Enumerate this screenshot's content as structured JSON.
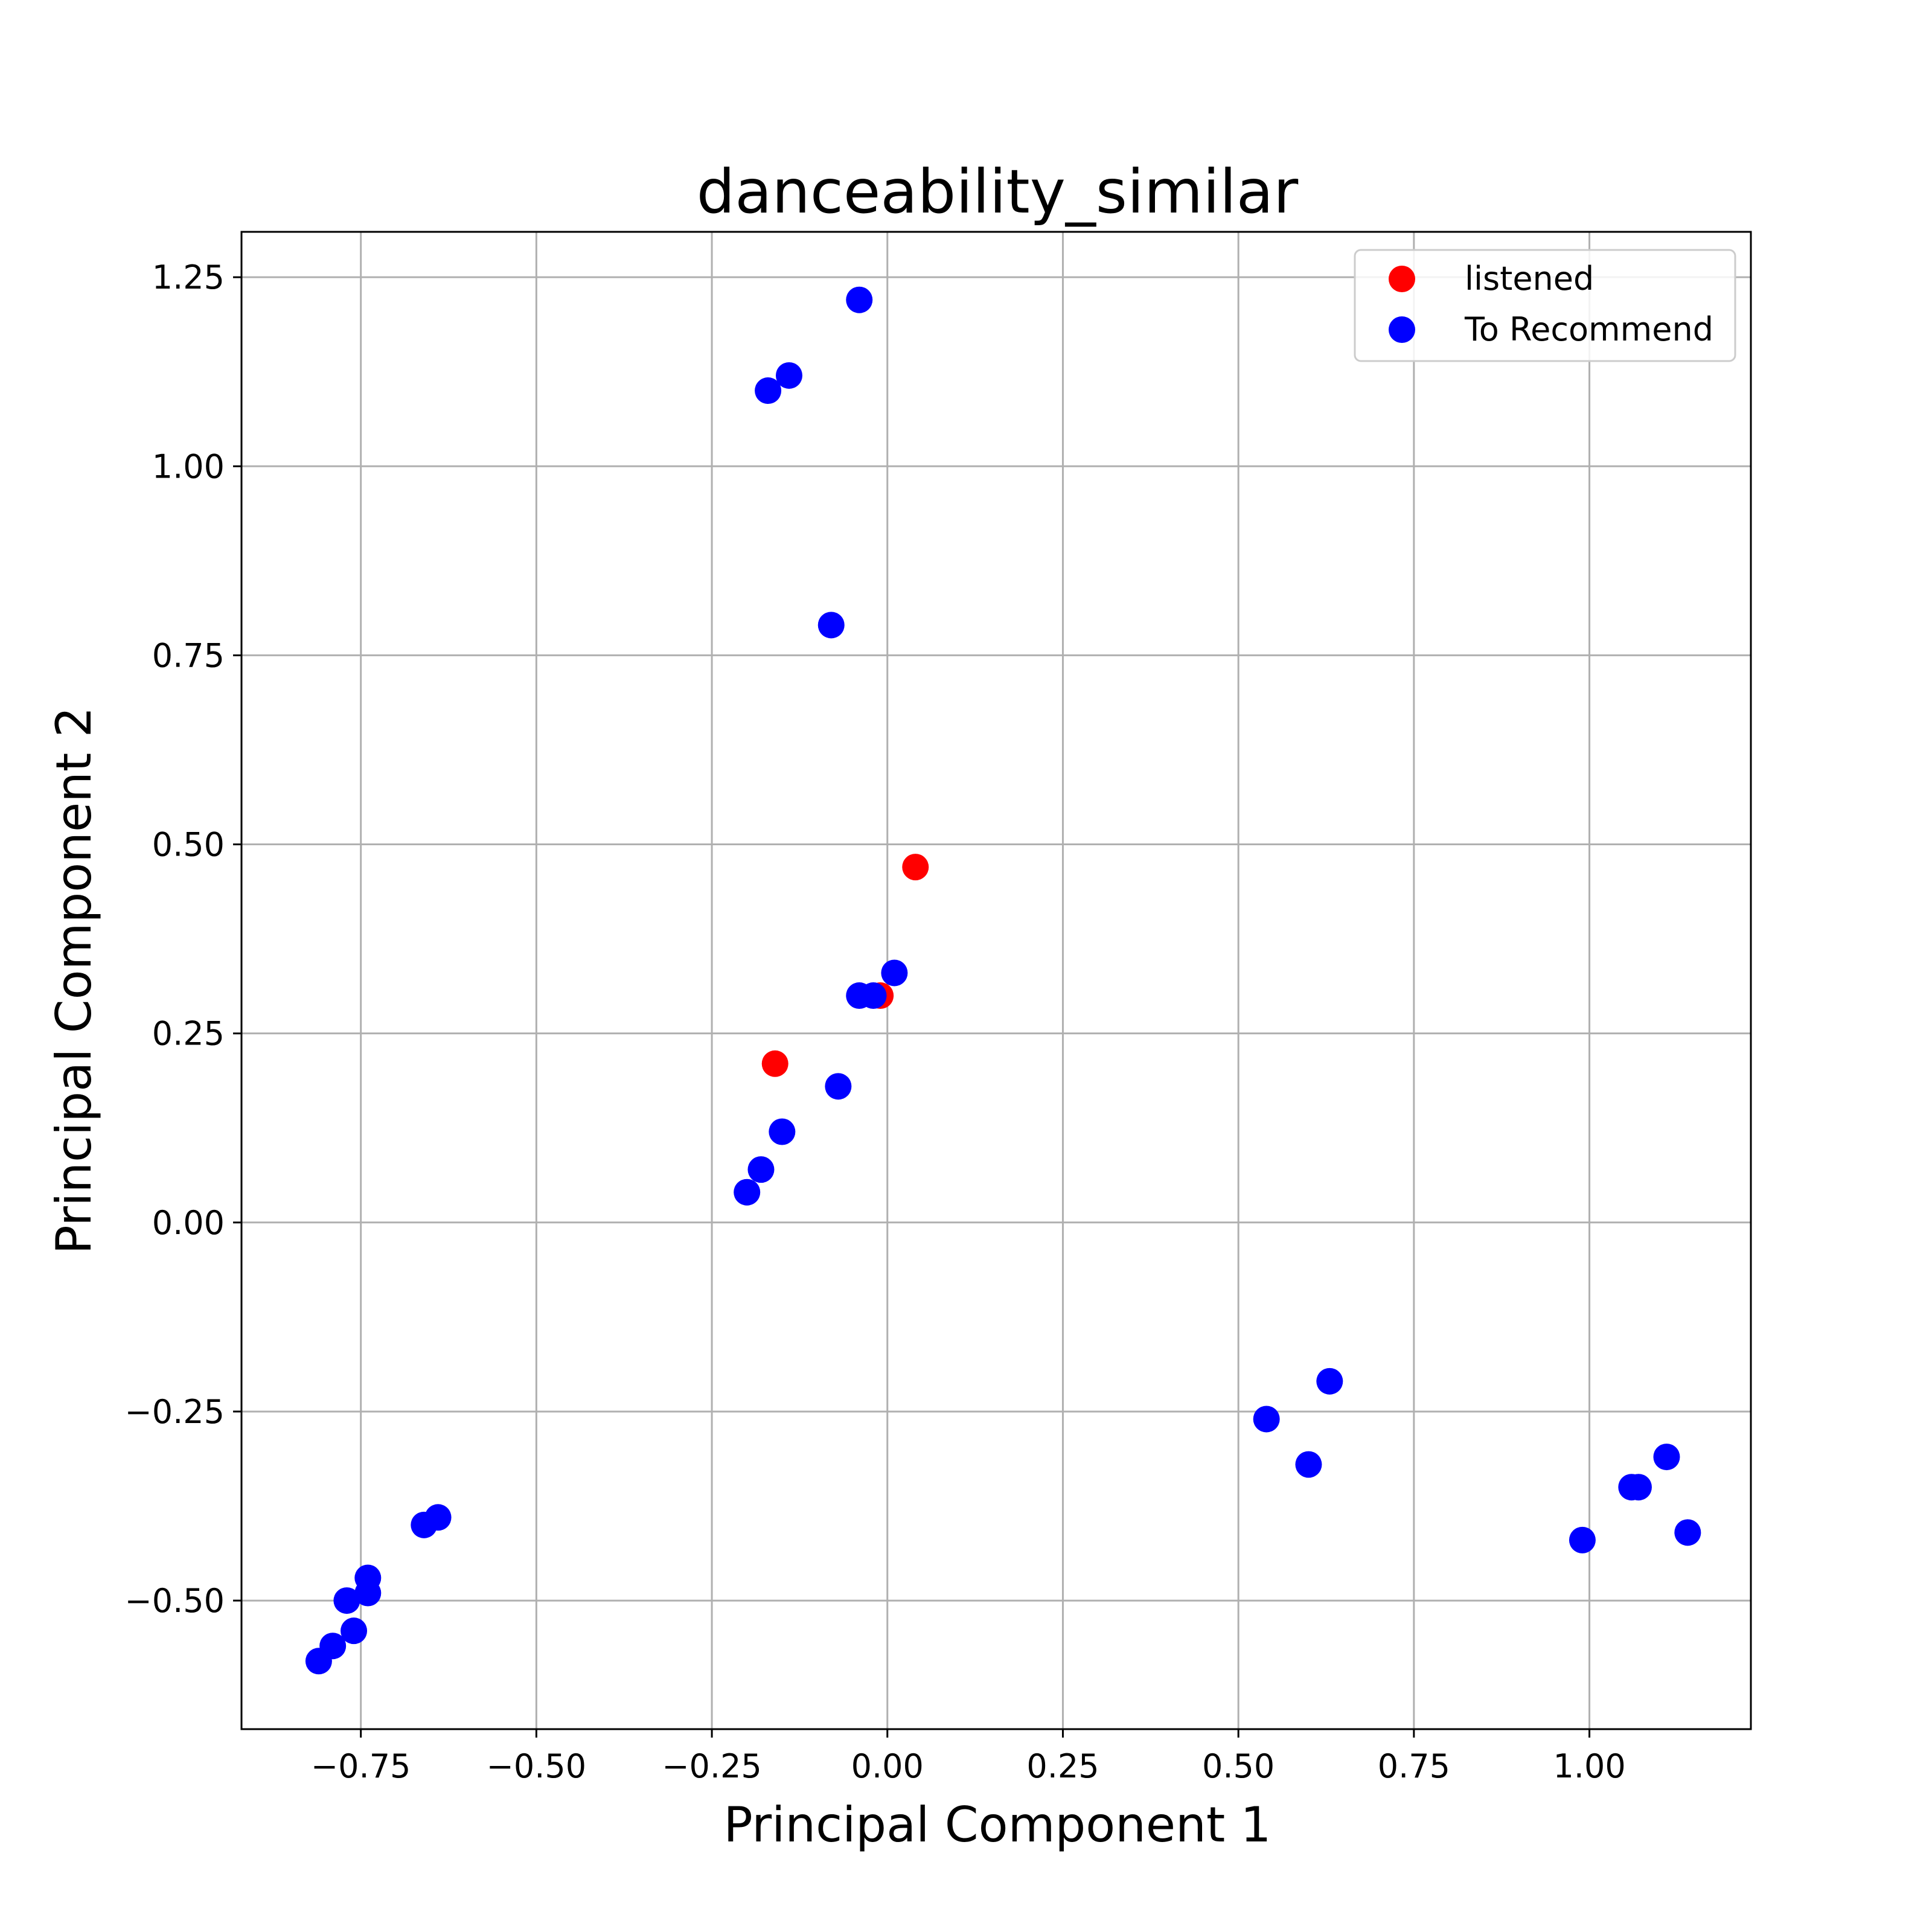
{
  "chart_data": {
    "type": "scatter",
    "title": "danceability_similar",
    "xlabel": "Principal Component 1",
    "ylabel": "Principal Component 2",
    "xlim": [
      -0.92,
      1.23
    ],
    "ylim": [
      -0.67,
      1.31
    ],
    "xticks": [
      -0.75,
      -0.5,
      -0.25,
      0.0,
      0.25,
      0.5,
      0.75,
      1.0
    ],
    "xtick_labels": [
      "−0.75",
      "−0.50",
      "−0.25",
      "0.00",
      "0.25",
      "0.50",
      "0.75",
      "1.00"
    ],
    "yticks": [
      -0.5,
      -0.25,
      0.0,
      0.25,
      0.5,
      0.75,
      1.0,
      1.25
    ],
    "ytick_labels": [
      "−0.50",
      "−0.25",
      "0.00",
      "0.25",
      "0.50",
      "0.75",
      "1.00",
      "1.25"
    ],
    "grid": true,
    "legend_position": "top-right",
    "series": [
      {
        "name": "listened",
        "color": "#ff0000",
        "points": [
          {
            "x": 0.04,
            "y": 0.47
          },
          {
            "x": -0.01,
            "y": 0.3
          },
          {
            "x": -0.16,
            "y": 0.21
          }
        ]
      },
      {
        "name": "To Recommend",
        "color": "#0000ff",
        "points": [
          {
            "x": -0.04,
            "y": 1.22
          },
          {
            "x": -0.14,
            "y": 1.12
          },
          {
            "x": -0.17,
            "y": 1.1
          },
          {
            "x": -0.08,
            "y": 0.79
          },
          {
            "x": 0.01,
            "y": 0.33
          },
          {
            "x": -0.04,
            "y": 0.3
          },
          {
            "x": -0.02,
            "y": 0.3
          },
          {
            "x": -0.07,
            "y": 0.18
          },
          {
            "x": -0.15,
            "y": 0.12
          },
          {
            "x": -0.18,
            "y": 0.07
          },
          {
            "x": -0.2,
            "y": 0.04
          },
          {
            "x": 0.63,
            "y": -0.21
          },
          {
            "x": 0.54,
            "y": -0.26
          },
          {
            "x": 0.6,
            "y": -0.32
          },
          {
            "x": 1.11,
            "y": -0.31
          },
          {
            "x": 1.06,
            "y": -0.35
          },
          {
            "x": 1.07,
            "y": -0.35
          },
          {
            "x": 1.14,
            "y": -0.41
          },
          {
            "x": 0.99,
            "y": -0.42
          },
          {
            "x": -0.64,
            "y": -0.39
          },
          {
            "x": -0.66,
            "y": -0.4
          },
          {
            "x": -0.74,
            "y": -0.47
          },
          {
            "x": -0.74,
            "y": -0.49
          },
          {
            "x": -0.77,
            "y": -0.5
          },
          {
            "x": -0.76,
            "y": -0.54
          },
          {
            "x": -0.79,
            "y": -0.56
          },
          {
            "x": -0.81,
            "y": -0.58
          }
        ]
      }
    ]
  }
}
